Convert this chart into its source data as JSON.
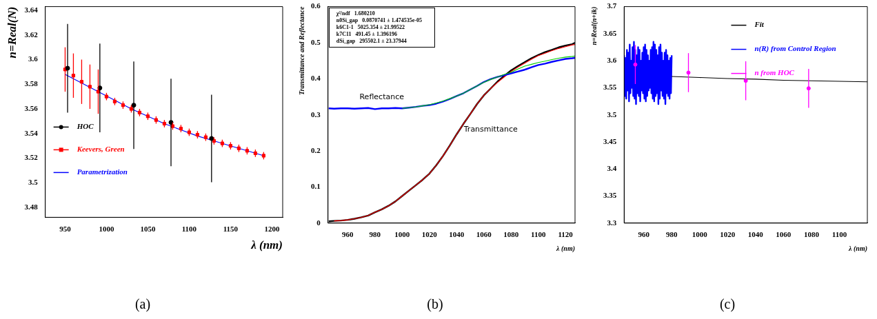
{
  "chart_data": [
    {
      "type": "scatter",
      "title": "(a)",
      "xlabel": "λ (nm)",
      "ylabel": "n=Real(N)",
      "xlim": [
        926,
        1213
      ],
      "ylim": [
        3.472,
        3.643
      ],
      "xticks": [
        950,
        1000,
        1050,
        1100,
        1150,
        1200
      ],
      "yticks": [
        3.48,
        3.5,
        3.52,
        3.54,
        3.56,
        3.58,
        3.6,
        3.62,
        3.64
      ],
      "grid": false,
      "legend": "bottom left",
      "series": [
        {
          "name": "HOC",
          "type": "scatter",
          "marker": "circle",
          "color": "#000000",
          "x": [
            953,
            992,
            1033,
            1078,
            1127
          ],
          "values": [
            3.593,
            3.577,
            3.563,
            3.549,
            3.536
          ],
          "errors": [
            0.036,
            0.036,
            0.0355,
            0.0355,
            0.0355
          ]
        },
        {
          "name": "Keevers, Green",
          "type": "scatter",
          "marker": "square",
          "color": "#ff0000",
          "x": [
            950,
            960,
            970,
            980,
            990,
            1000,
            1010,
            1020,
            1030,
            1040,
            1050,
            1060,
            1070,
            1080,
            1090,
            1100,
            1110,
            1120,
            1130,
            1140,
            1150,
            1160,
            1170,
            1180,
            1190
          ],
          "values": [
            3.592,
            3.587,
            3.582,
            3.578,
            3.574,
            3.57,
            3.566,
            3.563,
            3.56,
            3.557,
            3.554,
            3.551,
            3.548,
            3.546,
            3.544,
            3.541,
            3.539,
            3.537,
            3.534,
            3.532,
            3.53,
            3.528,
            3.526,
            3.524,
            3.522
          ],
          "errors": [
            0.018,
            0.018,
            0.018,
            0.018,
            0.018,
            0.003,
            0.003,
            0.003,
            0.003,
            0.003,
            0.003,
            0.003,
            0.003,
            0.003,
            0.003,
            0.003,
            0.003,
            0.003,
            0.003,
            0.003,
            0.003,
            0.003,
            0.003,
            0.003,
            0.003
          ]
        },
        {
          "name": "Parametrization",
          "type": "line",
          "marker": "none",
          "color": "#0000ff",
          "x": [
            950,
            970,
            990,
            1010,
            1030,
            1050,
            1070,
            1090,
            1110,
            1130,
            1150,
            1170,
            1190
          ],
          "values": [
            3.588,
            3.581,
            3.574,
            3.567,
            3.56,
            3.554,
            3.548,
            3.543,
            3.538,
            3.534,
            3.53,
            3.526,
            3.522
          ]
        }
      ]
    },
    {
      "type": "line",
      "title": "(b)",
      "xlabel": "λ (nm)",
      "ylabel": "Transmittance and Reflectance",
      "xlim": [
        945.5,
        1127
      ],
      "ylim": [
        0,
        0.6
      ],
      "xticks": [
        960,
        980,
        1000,
        1020,
        1040,
        1060,
        1080,
        1100,
        1120
      ],
      "yticks": [
        0,
        0.1,
        0.2,
        0.3,
        0.4,
        0.5,
        0.6
      ],
      "grid": false,
      "x": [
        946,
        950,
        955,
        960,
        965,
        970,
        975,
        980,
        985,
        990,
        995,
        1000,
        1005,
        1010,
        1015,
        1020,
        1025,
        1030,
        1035,
        1040,
        1045,
        1050,
        1055,
        1060,
        1065,
        1070,
        1075,
        1080,
        1085,
        1090,
        1095,
        1100,
        1105,
        1110,
        1115,
        1120,
        1125,
        1127
      ],
      "series": [
        {
          "color": "#00cc00",
          "values": [
            null,
            null,
            null,
            null,
            null,
            null,
            null,
            null,
            null,
            null,
            null,
            0.318,
            0.32,
            0.322,
            0.325,
            0.328,
            0.333,
            0.338,
            0.345,
            0.352,
            0.36,
            0.37,
            0.38,
            0.39,
            0.398,
            0.405,
            0.412,
            0.418,
            0.427,
            0.435,
            0.44,
            0.445,
            0.449,
            0.453,
            0.457,
            0.46,
            0.462,
            0.463
          ]
        },
        {
          "name": "Reflectance",
          "color": "#0000ff",
          "values": [
            0.318,
            0.317,
            0.318,
            0.318,
            0.317,
            0.318,
            0.319,
            0.316,
            0.318,
            0.318,
            0.319,
            0.318,
            0.32,
            0.322,
            0.325,
            0.327,
            0.331,
            0.337,
            0.344,
            0.352,
            0.36,
            0.37,
            0.38,
            0.391,
            0.399,
            0.405,
            0.41,
            0.415,
            0.42,
            0.425,
            0.432,
            0.438,
            0.442,
            0.447,
            0.451,
            0.455,
            0.457,
            0.458
          ]
        },
        {
          "color": "#ff0000",
          "values": [
            null,
            0.006,
            0.007,
            0.009,
            0.012,
            0.016,
            0.021,
            0.03,
            0.038,
            0.048,
            0.06,
            0.075,
            0.09,
            0.105,
            0.12,
            0.137,
            0.16,
            0.186,
            0.215,
            0.246,
            0.275,
            0.302,
            0.33,
            0.354,
            0.373,
            0.39,
            0.405,
            0.42,
            0.432,
            0.443,
            0.454,
            0.464,
            0.471,
            0.478,
            0.484,
            0.489,
            0.494,
            0.495
          ]
        },
        {
          "name": "Transmittance",
          "color": "#000000",
          "values": [
            0.005,
            0.006,
            0.007,
            0.009,
            0.012,
            0.016,
            0.021,
            0.03,
            0.038,
            0.048,
            0.06,
            0.075,
            0.09,
            0.105,
            0.12,
            0.137,
            0.16,
            0.186,
            0.215,
            0.246,
            0.275,
            0.302,
            0.33,
            0.354,
            0.373,
            0.392,
            0.408,
            0.423,
            0.435,
            0.446,
            0.457,
            0.466,
            0.474,
            0.48,
            0.487,
            0.492,
            0.496,
            0.5
          ]
        }
      ],
      "annotations": [
        "χ²/ndf   1.680210",
        "n0Si_gap   0.0870741 ± 1.474535e-05",
        "k6C1-1   5025.354 ± 21.99522",
        "k7C11   491.45 ± 1.396196",
        "dSi_gap   295502.1 ± 23.37944"
      ]
    },
    {
      "type": "line",
      "title": "(c)",
      "xlabel": "λ (nm)",
      "ylabel": "n=Real(n+ik)",
      "xlim": [
        946,
        1120
      ],
      "ylim": [
        3.3,
        3.7
      ],
      "xticks": [
        960,
        980,
        1000,
        1020,
        1040,
        1060,
        1080,
        1100
      ],
      "yticks": [
        3.3,
        3.35,
        3.4,
        3.45,
        3.5,
        3.55,
        3.6,
        3.65,
        3.7
      ],
      "grid": false,
      "legend": "top right",
      "series": [
        {
          "name": "Fit",
          "type": "line",
          "marker": "none",
          "color": "#000000",
          "x": [
            980,
            1000,
            1020,
            1040,
            1060,
            1080,
            1100,
            1120
          ],
          "values": [
            3.571,
            3.569,
            3.567,
            3.566,
            3.564,
            3.563,
            3.562,
            3.561
          ]
        },
        {
          "name": "n(R) from Control Region",
          "type": "line",
          "marker": "none",
          "color": "#0000ff",
          "x": [
            946,
            946.5,
            947,
            947.5,
            948,
            948.5,
            949,
            949.5,
            950,
            950.5,
            951,
            951.5,
            952,
            952.5,
            953,
            953.5,
            954,
            954.5,
            955,
            955.5,
            956,
            956.5,
            957,
            957.5,
            958,
            958.5,
            959,
            959.5,
            960,
            960.5,
            961,
            961.5,
            962,
            962.5,
            963,
            963.5,
            964,
            964.5,
            965,
            965.5,
            966,
            966.5,
            967,
            967.5,
            968,
            968.5,
            969,
            969.5,
            970,
            970.5,
            971,
            971.5,
            972,
            972.5,
            973,
            973.5,
            974,
            974.5,
            975,
            975.5,
            976,
            976.5,
            977,
            977.5,
            978,
            978.5,
            979,
            979.5,
            980
          ],
          "values": [
            3.61,
            3.535,
            3.605,
            3.53,
            3.62,
            3.545,
            3.615,
            3.525,
            3.63,
            3.54,
            3.6,
            3.55,
            3.625,
            3.535,
            3.635,
            3.53,
            3.62,
            3.52,
            3.61,
            3.54,
            3.625,
            3.535,
            3.62,
            3.525,
            3.6,
            3.545,
            3.615,
            3.54,
            3.625,
            3.53,
            3.63,
            3.525,
            3.62,
            3.535,
            3.61,
            3.545,
            3.6,
            3.55,
            3.62,
            3.54,
            3.625,
            3.53,
            3.635,
            3.525,
            3.63,
            3.535,
            3.62,
            3.54,
            3.61,
            3.52,
            3.625,
            3.53,
            3.63,
            3.545,
            3.615,
            3.535,
            3.6,
            3.53,
            3.615,
            3.52,
            3.62,
            3.54,
            3.61,
            3.535,
            3.6,
            3.53,
            3.605,
            3.54,
            3.61
          ]
        },
        {
          "name": "n from HOC",
          "type": "scatter",
          "marker": "circle",
          "color": "#ff00ff",
          "x": [
            954,
            992,
            1033,
            1078
          ],
          "values": [
            3.593,
            3.578,
            3.563,
            3.549
          ],
          "errors": [
            0.036,
            0.036,
            0.036,
            0.036
          ]
        }
      ]
    }
  ]
}
